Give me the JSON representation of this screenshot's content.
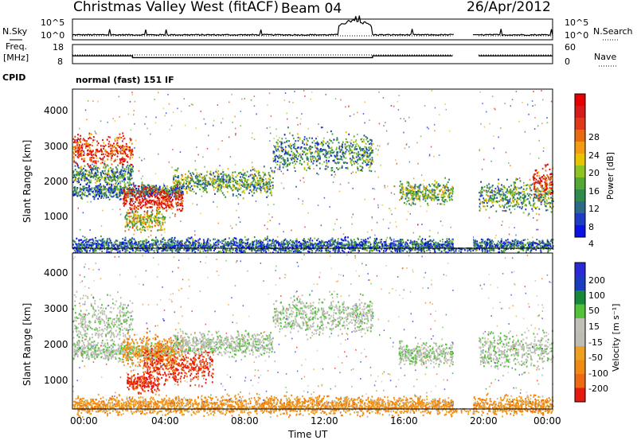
{
  "header": {
    "station": "Christmas Valley West (fitACF)",
    "beam": "Beam 04",
    "date": "26/Apr/2012"
  },
  "params": {
    "nsky_label": "N.Sky",
    "nsky_ticks": [
      "10^5",
      "10^0"
    ],
    "nsearch_label": "N.Search",
    "freq_label": "Freq.",
    "freq_unit": "[MHz]",
    "freq_ticks": [
      "18",
      "8"
    ],
    "nave_label": "Nave",
    "nave_ticks": [
      "60",
      "0"
    ],
    "cpid_label": "CPID",
    "cpid_value": "normal (fast) 151 IF"
  },
  "colors": {
    "power": [
      "#0a12e6",
      "#1f3cc8",
      "#2d6a8a",
      "#2f8c4c",
      "#52a832",
      "#8fc31f",
      "#e6c400",
      "#f39c12",
      "#ea6a10",
      "#e03818",
      "#d71a1a",
      "#e80000"
    ],
    "velocity": [
      "#2a2ad8",
      "#1a3cc0",
      "#178a3a",
      "#52c23a",
      "#c0c0b8",
      "#bdbdb5",
      "#f0a020",
      "#f08a10",
      "#ee6a10",
      "#e81a10"
    ],
    "background": "#ffffff",
    "axis": "#000000"
  },
  "chart_data": [
    {
      "type": "line",
      "name": "N.Sky / N.Search",
      "x_unit": "hours UT",
      "series": [
        {
          "x": [
            0,
            3.0,
            6.0,
            9.0,
            12.0,
            13.5,
            14.2,
            15.0,
            16.0,
            18.9,
            20.0,
            22.0,
            24.0
          ],
          "y": [
            1.0,
            1.1,
            1.0,
            1.1,
            1.2,
            2.5,
            4.0,
            1.3,
            1.0,
            1.0,
            1.0,
            1.0,
            1.0
          ]
        }
      ],
      "ylim": [
        0,
        5
      ],
      "gap": [
        19.0,
        20.3
      ]
    },
    {
      "type": "line",
      "name": "Freq. / Nave",
      "series": [
        {
          "x": [
            0,
            3.0,
            3.0,
            15.0,
            15.0,
            19.0
          ],
          "y": [
            12.0,
            12.0,
            11.0,
            11.0,
            12.0,
            12.0
          ]
        }
      ],
      "ylim": [
        8,
        18
      ],
      "gap": [
        19.0,
        20.3
      ]
    },
    {
      "type": "heatmap",
      "ylabel": "Slant Range [km]",
      "yticks": [
        "1000",
        "2000",
        "3000",
        "4000"
      ],
      "xticks": [
        "00:00",
        "04:00",
        "08:00",
        "12:00",
        "16:00",
        "20:00",
        "00:00"
      ],
      "ylim": [
        180,
        4500
      ],
      "colorbar": {
        "label": "Power [dB]",
        "ticks": [
          "4",
          "8",
          "12",
          "16",
          "20",
          "24",
          "28"
        ]
      },
      "echo_regions": [
        {
          "t0": 0.0,
          "t1": 3.0,
          "r_center": 2850,
          "r_width": 250,
          "value_level": 0.8
        },
        {
          "t0": 0.0,
          "t1": 3.0,
          "r_center": 2200,
          "r_width": 150,
          "value_level": 0.3
        },
        {
          "t0": 0.0,
          "t1": 5.5,
          "r_center": 1750,
          "r_width": 120,
          "value_level": 0.25
        },
        {
          "t0": 2.5,
          "t1": 5.5,
          "r_center": 1500,
          "r_width": 200,
          "value_level": 0.9
        },
        {
          "t0": 2.6,
          "t1": 4.6,
          "r_center": 950,
          "r_width": 180,
          "value_level": 0.5
        },
        {
          "t0": 5.0,
          "t1": 10.0,
          "r_center": 2000,
          "r_width": 200,
          "value_level": 0.35
        },
        {
          "t0": 10.0,
          "t1": 15.0,
          "r_center": 2800,
          "r_width": 300,
          "value_level": 0.3
        },
        {
          "t0": 16.3,
          "t1": 19.0,
          "r_center": 1700,
          "r_width": 180,
          "value_level": 0.4
        },
        {
          "t0": 20.3,
          "t1": 24.0,
          "r_center": 1600,
          "r_width": 250,
          "value_level": 0.35
        },
        {
          "t0": 23.0,
          "t1": 24.0,
          "r_center": 2000,
          "r_width": 250,
          "value_level": 0.8
        },
        {
          "t0": 0.0,
          "t1": 24.0,
          "r_center": 250,
          "r_width": 120,
          "value_level": 0.2
        }
      ]
    },
    {
      "type": "heatmap",
      "ylabel": "Slant Range [km]",
      "yticks": [
        "1000",
        "2000",
        "3000",
        "4000"
      ],
      "xticks": [
        "00:00",
        "04:00",
        "08:00",
        "12:00",
        "16:00",
        "20:00",
        "00:00"
      ],
      "xlabel": "Time UT",
      "ylim": [
        180,
        4500
      ],
      "colorbar": {
        "label": "Velocity [m s⁻¹]",
        "ticks": [
          "200",
          "100",
          "50",
          "15",
          "-15",
          "-50",
          "-100",
          "-200"
        ]
      },
      "echo_regions": [
        {
          "t0": 0.0,
          "t1": 3.0,
          "r_center": 2600,
          "r_width": 400,
          "value_level": 0.45
        },
        {
          "t0": 0.0,
          "t1": 5.0,
          "r_center": 1800,
          "r_width": 150,
          "value_level": 0.45
        },
        {
          "t0": 2.5,
          "t1": 5.5,
          "r_center": 1800,
          "r_width": 300,
          "value_level": 0.75
        },
        {
          "t0": 3.5,
          "t1": 7.0,
          "r_center": 1350,
          "r_width": 300,
          "value_level": 0.95
        },
        {
          "t0": 2.7,
          "t1": 4.3,
          "r_center": 900,
          "r_width": 150,
          "value_level": 0.95
        },
        {
          "t0": 5.0,
          "t1": 10.0,
          "r_center": 2000,
          "r_width": 200,
          "value_level": 0.45
        },
        {
          "t0": 10.0,
          "t1": 15.0,
          "r_center": 2800,
          "r_width": 300,
          "value_level": 0.45
        },
        {
          "t0": 16.3,
          "t1": 19.0,
          "r_center": 1700,
          "r_width": 180,
          "value_level": 0.45
        },
        {
          "t0": 20.3,
          "t1": 24.0,
          "r_center": 1800,
          "r_width": 300,
          "value_level": 0.45
        },
        {
          "t0": 0.0,
          "t1": 24.0,
          "r_center": 280,
          "r_width": 150,
          "value_level": 0.7
        }
      ]
    }
  ]
}
